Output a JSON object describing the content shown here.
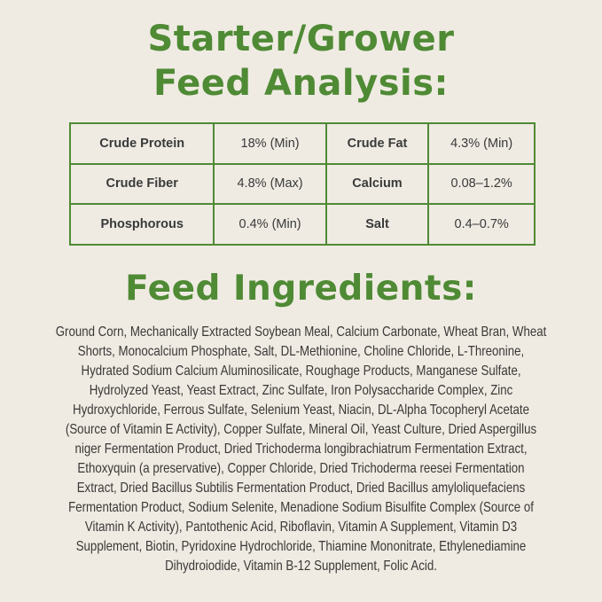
{
  "title": {
    "line1": "Starter/Grower",
    "line2": "Feed Analysis:"
  },
  "analysis": [
    [
      {
        "label": "Crude Protein",
        "value": "18% (Min)"
      },
      {
        "label": "Crude Fat",
        "value": "4.3% (Min)"
      }
    ],
    [
      {
        "label": "Crude Fiber",
        "value": "4.8% (Max)"
      },
      {
        "label": "Calcium",
        "value": "0.08–1.2%"
      }
    ],
    [
      {
        "label": "Phosphorous",
        "value": "0.4% (Min)"
      },
      {
        "label": "Salt",
        "value": "0.4–0.7%"
      }
    ]
  ],
  "ingredients": {
    "heading": "Feed Ingredients:",
    "lines": [
      "Ground Corn, Mechanically Extracted Soybean Meal, Calcium Carbonate, Wheat Bran, Wheat",
      "Shorts, Monocalcium Phosphate, Salt, DL-Methionine, Choline Chloride, L-Threonine,",
      "Hydrated Sodium Calcium Aluminosilicate, Roughage Products, Manganese Sulfate,",
      "Hydrolyzed Yeast, Yeast Extract, Zinc Sulfate, Iron Polysaccharide Complex, Zinc",
      "Hydroxychloride, Ferrous Sulfate, Selenium Yeast, Niacin, DL-Alpha Tocopheryl Acetate",
      "(Source of Vitamin E Activity), Copper Sulfate, Mineral Oil, Yeast Culture, Dried Aspergillus",
      "niger Fermentation Product, Dried Trichoderma longibrachiatrum Fermentation Extract,",
      "Ethoxyquin (a preservative), Copper Chloride, Dried Trichoderma reesei Fermentation",
      "Extract, Dried Bacillus Subtilis Fermentation Product, Dried Bacillus amyloliquefaciens",
      "Fermentation Product, Sodium Selenite, Menadione Sodium Bisulfite Complex (Source of",
      "Vitamin K Activity), Pantothenic Acid, Riboflavin, Vitamin A Supplement, Vitamin D3",
      "Supplement, Biotin, Pyridoxine Hydrochloride, Thiamine Mononitrate, Ethylenediamine",
      "Dihydroiodide, Vitamin B-12 Supplement, Folic Acid."
    ]
  },
  "colors": {
    "accent": "#4f8a34",
    "background": "#efebe3",
    "text": "#3a3836"
  }
}
